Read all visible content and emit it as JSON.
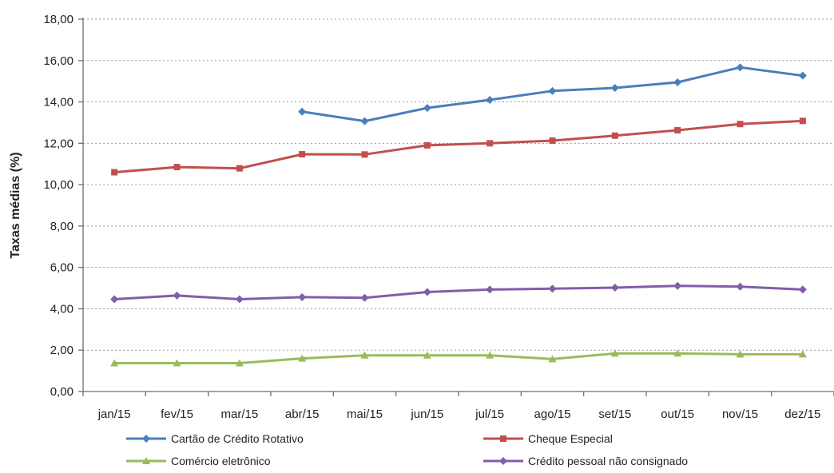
{
  "chart_data": {
    "type": "line",
    "title": "",
    "xlabel": "",
    "ylabel": "Taxas médias (%)",
    "categories": [
      "jan/15",
      "fev/15",
      "mar/15",
      "abr/15",
      "mai/15",
      "jun/15",
      "jul/15",
      "ago/15",
      "set/15",
      "out/15",
      "nov/15",
      "dez/15"
    ],
    "y_ticks": [
      "0,00",
      "2,00",
      "4,00",
      "6,00",
      "8,00",
      "10,00",
      "12,00",
      "14,00",
      "16,00",
      "18,00"
    ],
    "ylim": [
      0,
      18
    ],
    "grid": true,
    "legend_position": "bottom",
    "series": [
      {
        "name": "Cartão de Crédito Rotativo",
        "color": "#4a7ebb",
        "values": [
          null,
          null,
          null,
          13.53,
          13.07,
          13.71,
          14.1,
          14.53,
          14.68,
          14.95,
          15.67,
          15.27
        ]
      },
      {
        "name": "Cheque Especial",
        "color": "#c0504d",
        "values": [
          10.6,
          10.85,
          10.79,
          11.47,
          11.46,
          11.9,
          12.0,
          12.13,
          12.37,
          12.63,
          12.93,
          13.08
        ]
      },
      {
        "name": "Comércio eletrônico",
        "color": "#9bbb59",
        "values": [
          1.37,
          1.37,
          1.37,
          1.6,
          1.75,
          1.75,
          1.75,
          1.57,
          1.84,
          1.84,
          1.8,
          1.8
        ]
      },
      {
        "name": "Crédito pessoal não consignado",
        "color": "#7f5fa8",
        "values": [
          4.46,
          4.64,
          4.46,
          4.56,
          4.53,
          4.81,
          4.93,
          4.97,
          5.02,
          5.11,
          5.07,
          4.93
        ]
      }
    ]
  }
}
